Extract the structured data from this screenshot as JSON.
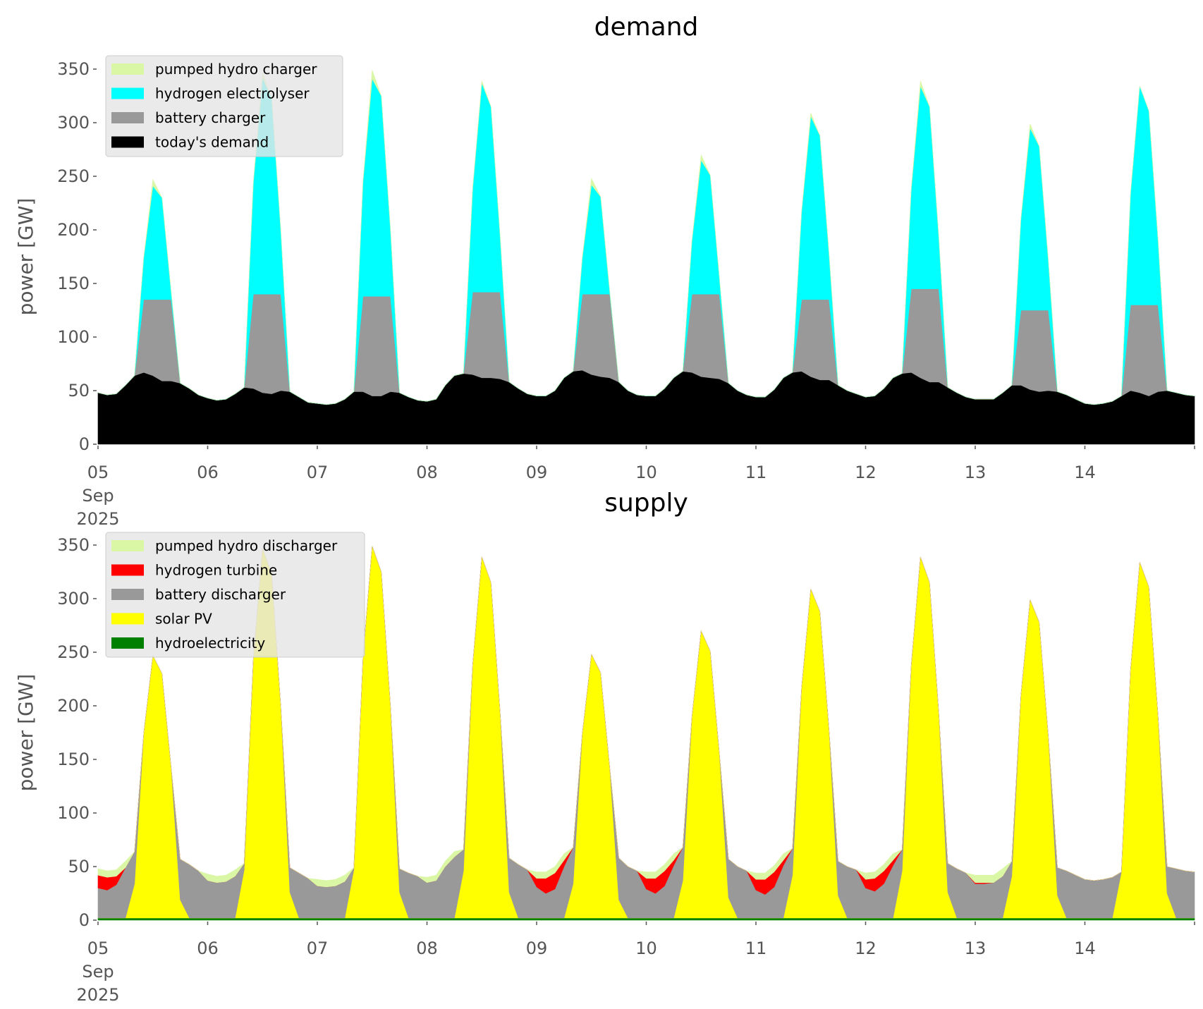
{
  "chart_data": [
    {
      "type": "area",
      "stacked": true,
      "title": "demand",
      "xlabel": "",
      "ylabel": "power [GW]",
      "ylim": [
        0,
        365
      ],
      "yticks": [
        0,
        50,
        100,
        150,
        200,
        250,
        300,
        350
      ],
      "x_start": "2025-09-05 00:00",
      "x_step_hours": 2,
      "xtick_labels": [
        "05",
        "06",
        "07",
        "08",
        "09",
        "10",
        "11",
        "12",
        "13",
        "14"
      ],
      "xtick_first_extra": [
        "Sep",
        "2025"
      ],
      "legend_position": "top-left",
      "grid": false,
      "series": [
        {
          "name": "today's demand",
          "color": "#000000",
          "values": [
            48,
            46,
            47,
            55,
            64,
            67,
            64,
            59,
            59,
            57,
            52,
            46,
            43,
            41,
            42,
            47,
            53,
            52,
            48,
            47,
            50,
            49,
            44,
            39,
            38,
            37,
            38,
            42,
            49,
            49,
            45,
            45,
            49,
            48,
            44,
            41,
            40,
            42,
            55,
            64,
            66,
            65,
            62,
            62,
            61,
            58,
            52,
            47,
            45,
            45,
            50,
            62,
            68,
            69,
            65,
            63,
            62,
            58,
            50,
            46,
            45,
            45,
            52,
            62,
            68,
            67,
            63,
            62,
            61,
            57,
            50,
            46,
            44,
            44,
            51,
            62,
            67,
            68,
            63,
            60,
            60,
            55,
            50,
            47,
            44,
            45,
            52,
            62,
            66,
            67,
            62,
            58,
            58,
            53,
            48,
            44,
            42,
            42,
            42,
            48,
            55,
            55,
            51,
            49,
            50,
            49,
            46,
            42,
            38,
            37,
            38,
            40,
            45,
            50,
            48,
            45,
            49,
            50,
            48,
            46,
            45
          ]
        },
        {
          "name": "battery charger",
          "color": "#999999",
          "values": [
            0,
            0,
            0,
            0,
            0,
            68,
            71,
            76,
            76,
            0,
            0,
            0,
            0,
            0,
            0,
            0,
            0,
            88,
            92,
            93,
            90,
            0,
            0,
            0,
            0,
            0,
            0,
            0,
            0,
            89,
            93,
            93,
            89,
            0,
            0,
            0,
            0,
            0,
            0,
            0,
            0,
            77,
            80,
            80,
            81,
            0,
            0,
            0,
            0,
            0,
            0,
            0,
            0,
            71,
            75,
            77,
            78,
            0,
            0,
            0,
            0,
            0,
            0,
            0,
            0,
            73,
            77,
            78,
            79,
            0,
            0,
            0,
            0,
            0,
            0,
            0,
            0,
            67,
            72,
            75,
            75,
            0,
            0,
            0,
            0,
            0,
            0,
            0,
            0,
            78,
            83,
            87,
            87,
            0,
            0,
            0,
            0,
            0,
            0,
            0,
            0,
            70,
            74,
            76,
            75,
            0,
            0,
            0,
            0,
            0,
            0,
            0,
            0,
            80,
            82,
            85,
            81,
            0,
            0,
            0,
            0
          ]
        },
        {
          "name": "hydrogen electrolyser",
          "color": "#00ffff",
          "values": [
            0,
            0,
            0,
            0,
            0,
            39,
            106,
            95,
            7,
            0,
            0,
            0,
            0,
            0,
            0,
            0,
            0,
            104,
            202,
            183,
            59,
            0,
            0,
            0,
            0,
            0,
            0,
            0,
            0,
            107,
            203,
            187,
            62,
            0,
            0,
            0,
            0,
            0,
            0,
            0,
            0,
            96,
            195,
            173,
            52,
            0,
            0,
            0,
            0,
            0,
            0,
            0,
            0,
            34,
            102,
            91,
            2,
            0,
            0,
            0,
            0,
            0,
            0,
            0,
            0,
            50,
            125,
            111,
            15,
            0,
            0,
            0,
            0,
            0,
            0,
            0,
            0,
            82,
            171,
            153,
            42,
            0,
            0,
            0,
            0,
            0,
            0,
            0,
            0,
            93,
            189,
            170,
            49,
            0,
            0,
            0,
            0,
            0,
            0,
            0,
            0,
            85,
            170,
            153,
            46,
            0,
            0,
            0,
            0,
            0,
            0,
            0,
            0,
            104,
            204,
            181,
            61,
            0,
            0,
            0,
            0
          ]
        },
        {
          "name": "pumped hydro charger",
          "color": "#d9f7a5",
          "values": [
            0,
            0,
            0,
            0,
            0,
            0,
            6,
            0,
            0,
            0,
            0,
            0,
            0,
            0,
            0,
            0,
            0,
            0,
            5,
            0,
            0,
            0,
            0,
            0,
            0,
            0,
            0,
            0,
            0,
            0,
            8,
            0,
            0,
            0,
            0,
            0,
            0,
            0,
            0,
            0,
            0,
            0,
            2,
            0,
            0,
            0,
            0,
            0,
            0,
            0,
            0,
            0,
            0,
            0,
            6,
            0,
            0,
            0,
            0,
            0,
            0,
            0,
            0,
            0,
            0,
            0,
            5,
            0,
            0,
            0,
            0,
            0,
            0,
            0,
            0,
            0,
            0,
            0,
            3,
            0,
            0,
            0,
            0,
            0,
            0,
            0,
            0,
            0,
            0,
            0,
            5,
            0,
            0,
            0,
            0,
            0,
            0,
            0,
            0,
            0,
            0,
            0,
            4,
            0,
            0,
            0,
            0,
            0,
            0,
            0,
            0,
            0,
            0,
            0,
            0,
            0,
            0,
            0,
            0,
            0,
            0
          ]
        }
      ]
    },
    {
      "type": "area",
      "stacked": true,
      "title": "supply",
      "xlabel": "",
      "ylabel": "power [GW]",
      "ylim": [
        0,
        365
      ],
      "yticks": [
        0,
        50,
        100,
        150,
        200,
        250,
        300,
        350
      ],
      "x_start": "2025-09-05 00:00",
      "x_step_hours": 2,
      "xtick_labels": [
        "05",
        "06",
        "07",
        "08",
        "09",
        "10",
        "11",
        "12",
        "13",
        "14"
      ],
      "xtick_first_extra": [
        "Sep",
        "2025"
      ],
      "legend_position": "top-left",
      "grid": false,
      "series": [
        {
          "name": "hydroelectricity",
          "color": "#008000",
          "values": [
            2,
            2,
            2,
            2,
            2,
            2,
            2,
            2,
            2,
            2,
            2,
            2,
            2,
            2,
            2,
            2,
            2,
            2,
            2,
            2,
            2,
            2,
            2,
            2,
            2,
            2,
            2,
            2,
            2,
            2,
            2,
            2,
            2,
            2,
            2,
            2,
            2,
            2,
            2,
            2,
            2,
            2,
            2,
            2,
            2,
            2,
            2,
            2,
            2,
            2,
            2,
            2,
            2,
            2,
            2,
            2,
            2,
            2,
            2,
            2,
            2,
            2,
            2,
            2,
            2,
            2,
            2,
            2,
            2,
            2,
            2,
            2,
            2,
            2,
            2,
            2,
            2,
            2,
            2,
            2,
            2,
            2,
            2,
            2,
            2,
            2,
            2,
            2,
            2,
            2,
            2,
            2,
            2,
            2,
            2,
            2,
            2,
            2,
            2,
            2,
            2,
            2,
            2,
            2,
            2,
            2,
            2,
            2,
            2,
            2,
            2,
            2,
            2,
            2,
            2,
            2,
            2,
            2,
            2,
            2,
            2
          ]
        },
        {
          "name": "solar PV",
          "color": "#ffff00",
          "values": [
            0,
            0,
            0,
            0,
            32,
            172,
            245,
            228,
            140,
            17,
            0,
            0,
            0,
            0,
            0,
            0,
            45,
            242,
            345,
            321,
            197,
            24,
            0,
            0,
            0,
            0,
            0,
            0,
            45,
            243,
            347,
            323,
            198,
            24,
            0,
            0,
            0,
            0,
            0,
            0,
            44,
            236,
            337,
            313,
            192,
            24,
            0,
            0,
            0,
            0,
            0,
            0,
            32,
            172,
            246,
            229,
            140,
            17,
            0,
            0,
            0,
            0,
            0,
            0,
            35,
            188,
            268,
            249,
            153,
            19,
            0,
            0,
            0,
            0,
            0,
            0,
            40,
            215,
            307,
            286,
            175,
            21,
            0,
            0,
            0,
            0,
            0,
            0,
            44,
            236,
            337,
            313,
            192,
            24,
            0,
            0,
            0,
            0,
            0,
            0,
            39,
            208,
            297,
            276,
            169,
            21,
            0,
            0,
            0,
            0,
            0,
            0,
            43,
            232,
            332,
            309,
            189,
            23,
            0,
            0,
            0
          ]
        },
        {
          "name": "battery discharger",
          "color": "#999999",
          "values": [
            28,
            26,
            31,
            47,
            30,
            0,
            0,
            0,
            0,
            38,
            50,
            44,
            35,
            33,
            34,
            39,
            6,
            0,
            0,
            0,
            0,
            23,
            42,
            37,
            30,
            29,
            30,
            34,
            2,
            0,
            0,
            0,
            0,
            22,
            42,
            39,
            33,
            35,
            48,
            57,
            20,
            0,
            0,
            0,
            0,
            32,
            50,
            45,
            29,
            23,
            27,
            48,
            34,
            0,
            0,
            0,
            0,
            39,
            48,
            44,
            27,
            23,
            30,
            49,
            31,
            0,
            0,
            0,
            0,
            36,
            48,
            44,
            26,
            22,
            29,
            49,
            25,
            0,
            0,
            0,
            0,
            32,
            48,
            45,
            28,
            25,
            32,
            49,
            20,
            0,
            0,
            0,
            0,
            27,
            46,
            42,
            32,
            32,
            33,
            39,
            14,
            0,
            0,
            0,
            0,
            26,
            44,
            40,
            36,
            35,
            36,
            38,
            0,
            0,
            0,
            0,
            0,
            25,
            46,
            44,
            43
          ]
        },
        {
          "name": "hydrogen turbine",
          "color": "#ff0000",
          "values": [
            12,
            12,
            8,
            0,
            0,
            0,
            0,
            0,
            0,
            0,
            0,
            0,
            0,
            0,
            0,
            0,
            0,
            0,
            0,
            0,
            0,
            0,
            0,
            0,
            0,
            0,
            0,
            0,
            0,
            0,
            0,
            0,
            0,
            0,
            0,
            0,
            0,
            0,
            0,
            0,
            0,
            0,
            0,
            0,
            0,
            0,
            0,
            0,
            8,
            14,
            15,
            6,
            0,
            0,
            0,
            0,
            0,
            0,
            0,
            0,
            10,
            14,
            14,
            5,
            0,
            0,
            0,
            0,
            0,
            0,
            0,
            0,
            10,
            14,
            14,
            5,
            0,
            0,
            0,
            0,
            0,
            0,
            0,
            0,
            8,
            12,
            12,
            5,
            0,
            0,
            0,
            0,
            0,
            0,
            0,
            0,
            1,
            1,
            0,
            0,
            0,
            0,
            0,
            0,
            0,
            0,
            0,
            0,
            0,
            0,
            0,
            0,
            0,
            0,
            0,
            0,
            0,
            0,
            0,
            0,
            0
          ]
        },
        {
          "name": "pumped hydro discharger",
          "color": "#d9f7a5",
          "values": [
            6,
            6,
            6,
            6,
            0,
            0,
            0,
            0,
            0,
            0,
            0,
            0,
            6,
            6,
            6,
            6,
            0,
            0,
            0,
            0,
            0,
            0,
            0,
            0,
            6,
            6,
            6,
            6,
            0,
            0,
            0,
            0,
            0,
            0,
            0,
            0,
            5,
            5,
            5,
            5,
            0,
            0,
            0,
            0,
            0,
            0,
            0,
            0,
            6,
            6,
            6,
            6,
            0,
            0,
            0,
            0,
            0,
            0,
            0,
            0,
            6,
            6,
            6,
            6,
            0,
            0,
            0,
            0,
            0,
            0,
            0,
            0,
            6,
            6,
            6,
            6,
            0,
            0,
            0,
            0,
            0,
            0,
            0,
            0,
            6,
            6,
            6,
            6,
            0,
            0,
            0,
            0,
            0,
            0,
            0,
            0,
            7,
            7,
            7,
            7,
            0,
            0,
            0,
            0,
            0,
            0,
            0,
            0,
            0,
            0,
            0,
            0,
            0,
            0,
            0,
            0,
            0,
            0,
            0,
            0,
            0
          ]
        }
      ]
    }
  ]
}
